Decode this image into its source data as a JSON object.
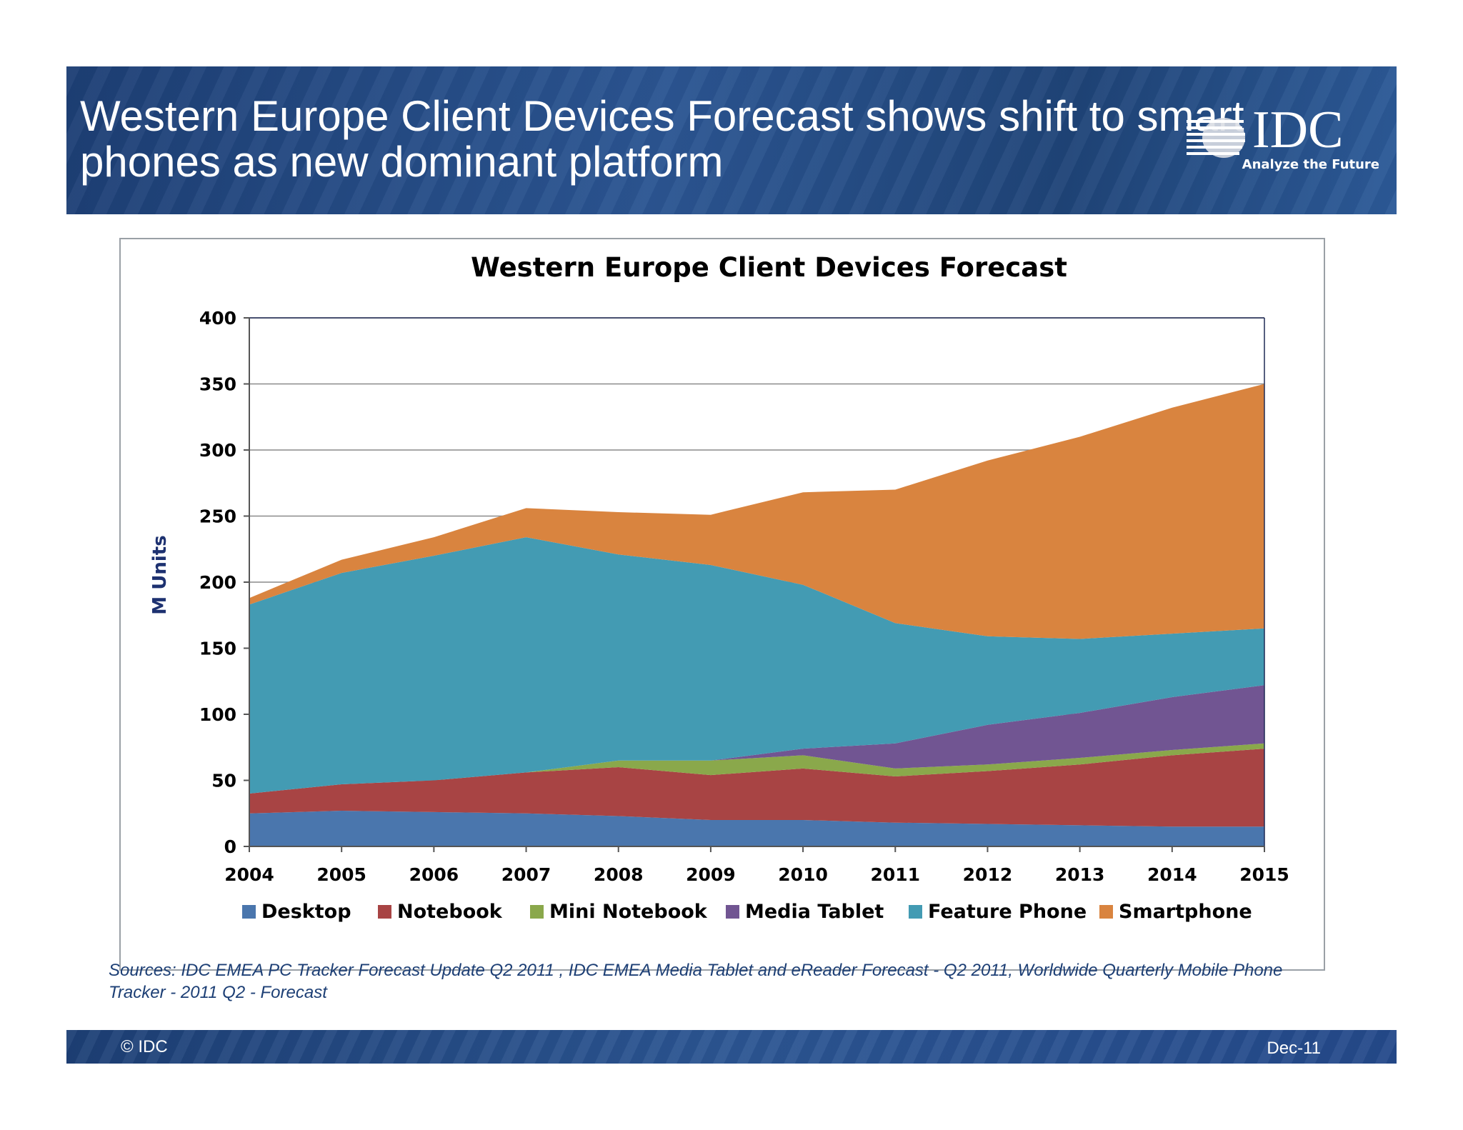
{
  "slide": {
    "title": "Western Europe Client Devices Forecast shows shift to smart phones as new dominant platform",
    "logo": {
      "name": "IDC",
      "tagline": "Analyze the Future"
    },
    "sources": "Sources: IDC EMEA PC Tracker Forecast Update Q2 2011 , IDC EMEA Media Tablet and eReader Forecast - Q2 2011, Worldwide Quarterly Mobile Phone Tracker - 2011 Q2  - Forecast",
    "copyright": "© IDC",
    "date": "Dec-11"
  },
  "chart_data": {
    "type": "area",
    "stacked": true,
    "title": "Western Europe Client Devices Forecast",
    "xlabel": "",
    "ylabel": "M Units",
    "ylim": [
      0,
      400
    ],
    "yticks": [
      0,
      50,
      100,
      150,
      200,
      250,
      300,
      350,
      400
    ],
    "grid": true,
    "legend_position": "bottom",
    "categories": [
      "2004",
      "2005",
      "2006",
      "2007",
      "2008",
      "2009",
      "2010",
      "2011",
      "2012",
      "2013",
      "2014",
      "2015"
    ],
    "series": [
      {
        "name": "Desktop",
        "color": "#4a76ad",
        "values": [
          25,
          27,
          26,
          25,
          23,
          20,
          20,
          18,
          17,
          16,
          15,
          15
        ]
      },
      {
        "name": "Notebook",
        "color": "#a84444",
        "values": [
          15,
          20,
          24,
          31,
          37,
          34,
          39,
          35,
          40,
          46,
          54,
          59
        ]
      },
      {
        "name": "Mini Notebook",
        "color": "#8aa84b",
        "values": [
          0,
          0,
          0,
          0,
          5,
          11,
          10,
          6,
          5,
          5,
          4,
          4
        ]
      },
      {
        "name": "Media Tablet",
        "color": "#715592",
        "values": [
          0,
          0,
          0,
          0,
          0,
          0,
          5,
          19,
          30,
          34,
          40,
          44
        ]
      },
      {
        "name": "Feature Phone",
        "color": "#439bb3",
        "values": [
          143,
          160,
          170,
          178,
          156,
          148,
          124,
          91,
          67,
          56,
          48,
          43
        ]
      },
      {
        "name": "Smartphone",
        "color": "#d9843f",
        "values": [
          5,
          10,
          14,
          22,
          32,
          38,
          70,
          101,
          133,
          153,
          171,
          185
        ]
      }
    ]
  }
}
